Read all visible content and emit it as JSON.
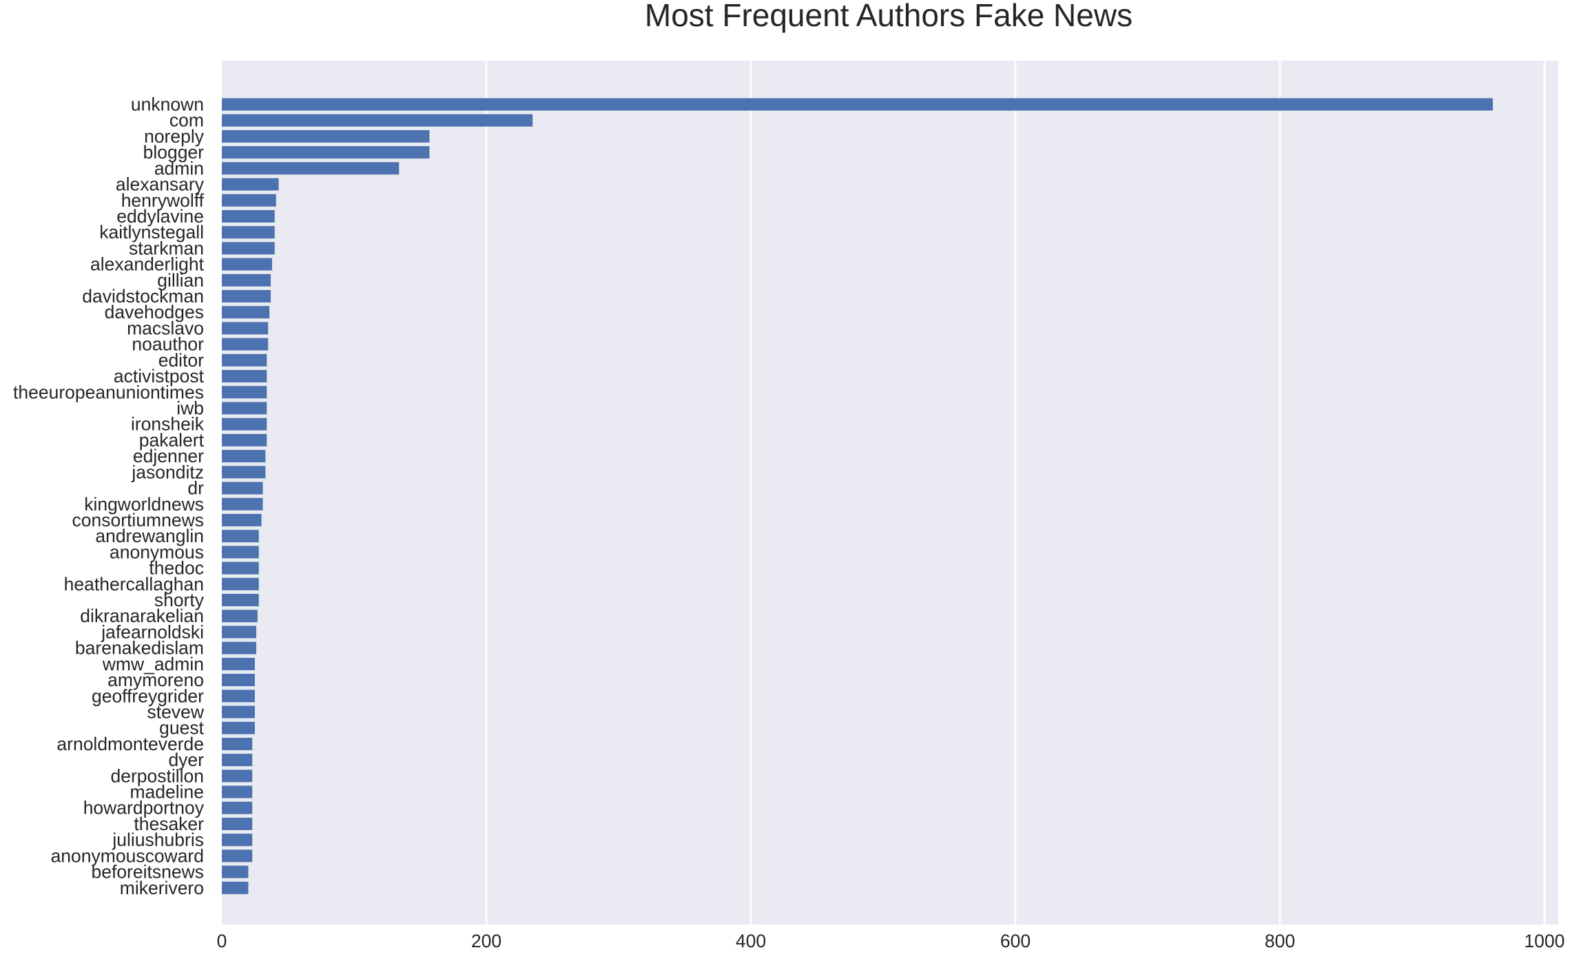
{
  "chart_data": {
    "type": "bar",
    "orientation": "horizontal",
    "title": "Most Frequent Authors Fake News",
    "xlabel": "",
    "ylabel": "",
    "xlim": [
      0,
      1000
    ],
    "x_ticks": [
      "0",
      "200",
      "400",
      "600",
      "800",
      "1000"
    ],
    "grid": true,
    "bar_color": "#4c72b0",
    "background_color": "#eaeaf2",
    "categories": [
      "unknown",
      "com",
      "noreply",
      "blogger",
      "admin",
      "alexansary",
      "henrywolff",
      "eddylavine",
      "kaitlynstegall",
      "starkman",
      "alexanderlight",
      "gillian",
      "davidstockman",
      "davehodges",
      "macslavo",
      "noauthor",
      "editor",
      "activistpost",
      "theeuropeanuniontimes",
      "iwb",
      "ironsheik",
      "pakalert",
      "edjenner",
      "jasonditz",
      "dr",
      "kingworldnews",
      "consortiumnews",
      "andrewanglin",
      "anonymous",
      "thedoc",
      "heathercallaghan",
      "shorty",
      "dikranarakelian",
      "jafearnoldski",
      "barenakedislam",
      "wmw_admin",
      "amymoreno",
      "geoffreygrider",
      "stevew",
      "guest",
      "arnoldmonteverde",
      "dyer",
      "derpostillon",
      "madeline",
      "howardportnoy",
      "thesaker",
      "juliushubris",
      "anonymouscoward",
      "beforeitsnews",
      "mikerivero"
    ],
    "values": [
      961,
      235,
      157,
      157,
      134,
      43,
      41,
      40,
      40,
      40,
      38,
      37,
      37,
      36,
      35,
      35,
      34,
      34,
      34,
      34,
      34,
      34,
      33,
      33,
      31,
      31,
      30,
      28,
      28,
      28,
      28,
      28,
      27,
      26,
      26,
      25,
      25,
      25,
      25,
      25,
      23,
      23,
      23,
      23,
      23,
      23,
      23,
      23,
      20,
      20
    ]
  }
}
